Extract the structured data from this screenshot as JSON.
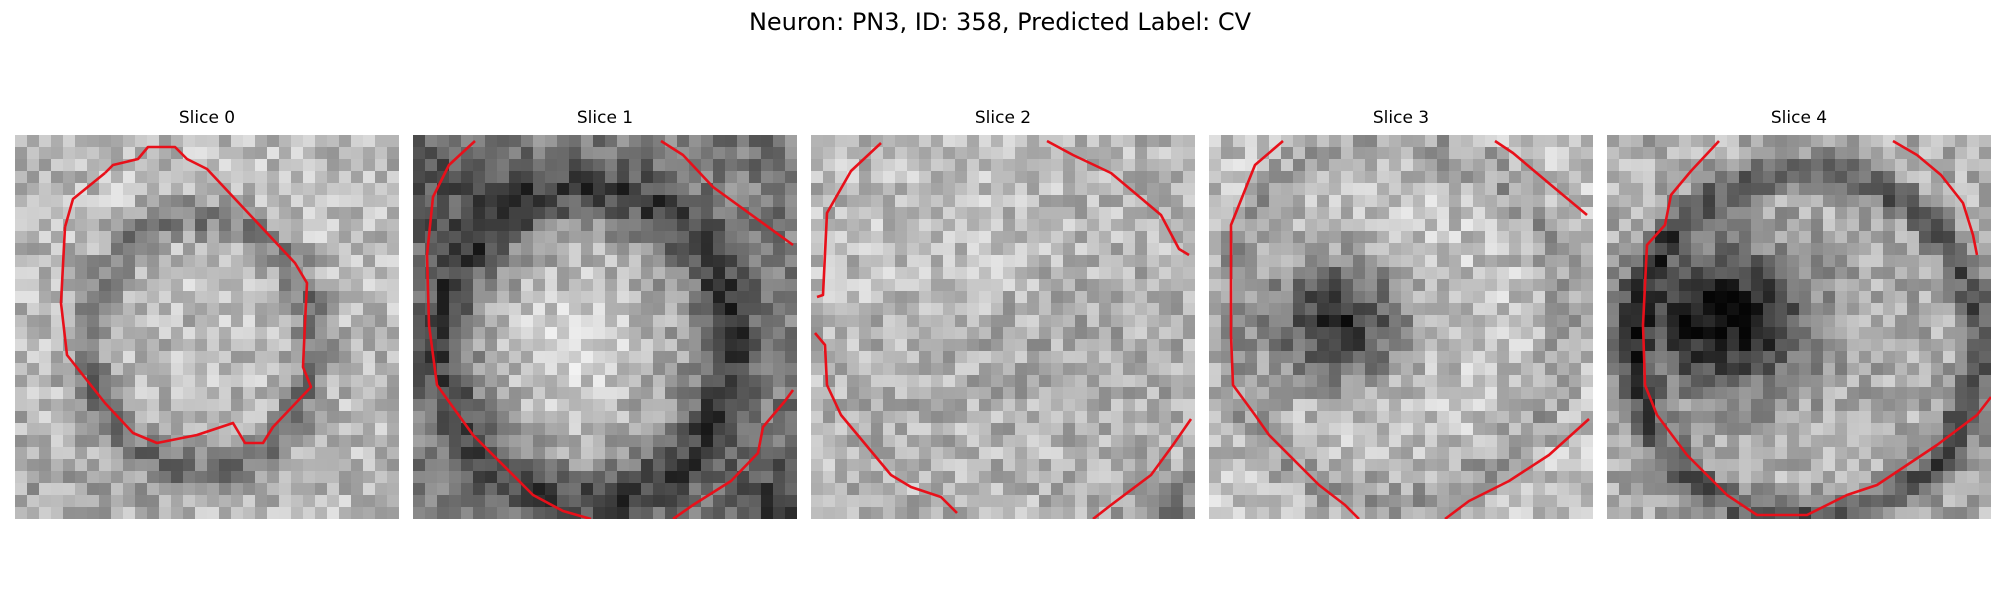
{
  "figure": {
    "title": "Neuron: PN3, ID: 358, Predicted Label: CV",
    "panels": [
      {
        "title": "Slice 0",
        "contour_color": "#e8101a"
      },
      {
        "title": "Slice 1",
        "contour_color": "#e8101a"
      },
      {
        "title": "Slice 2",
        "contour_color": "#e8101a"
      },
      {
        "title": "Slice 3",
        "contour_color": "#e8101a"
      },
      {
        "title": "Slice 4",
        "contour_color": "#e8101a"
      }
    ]
  }
}
